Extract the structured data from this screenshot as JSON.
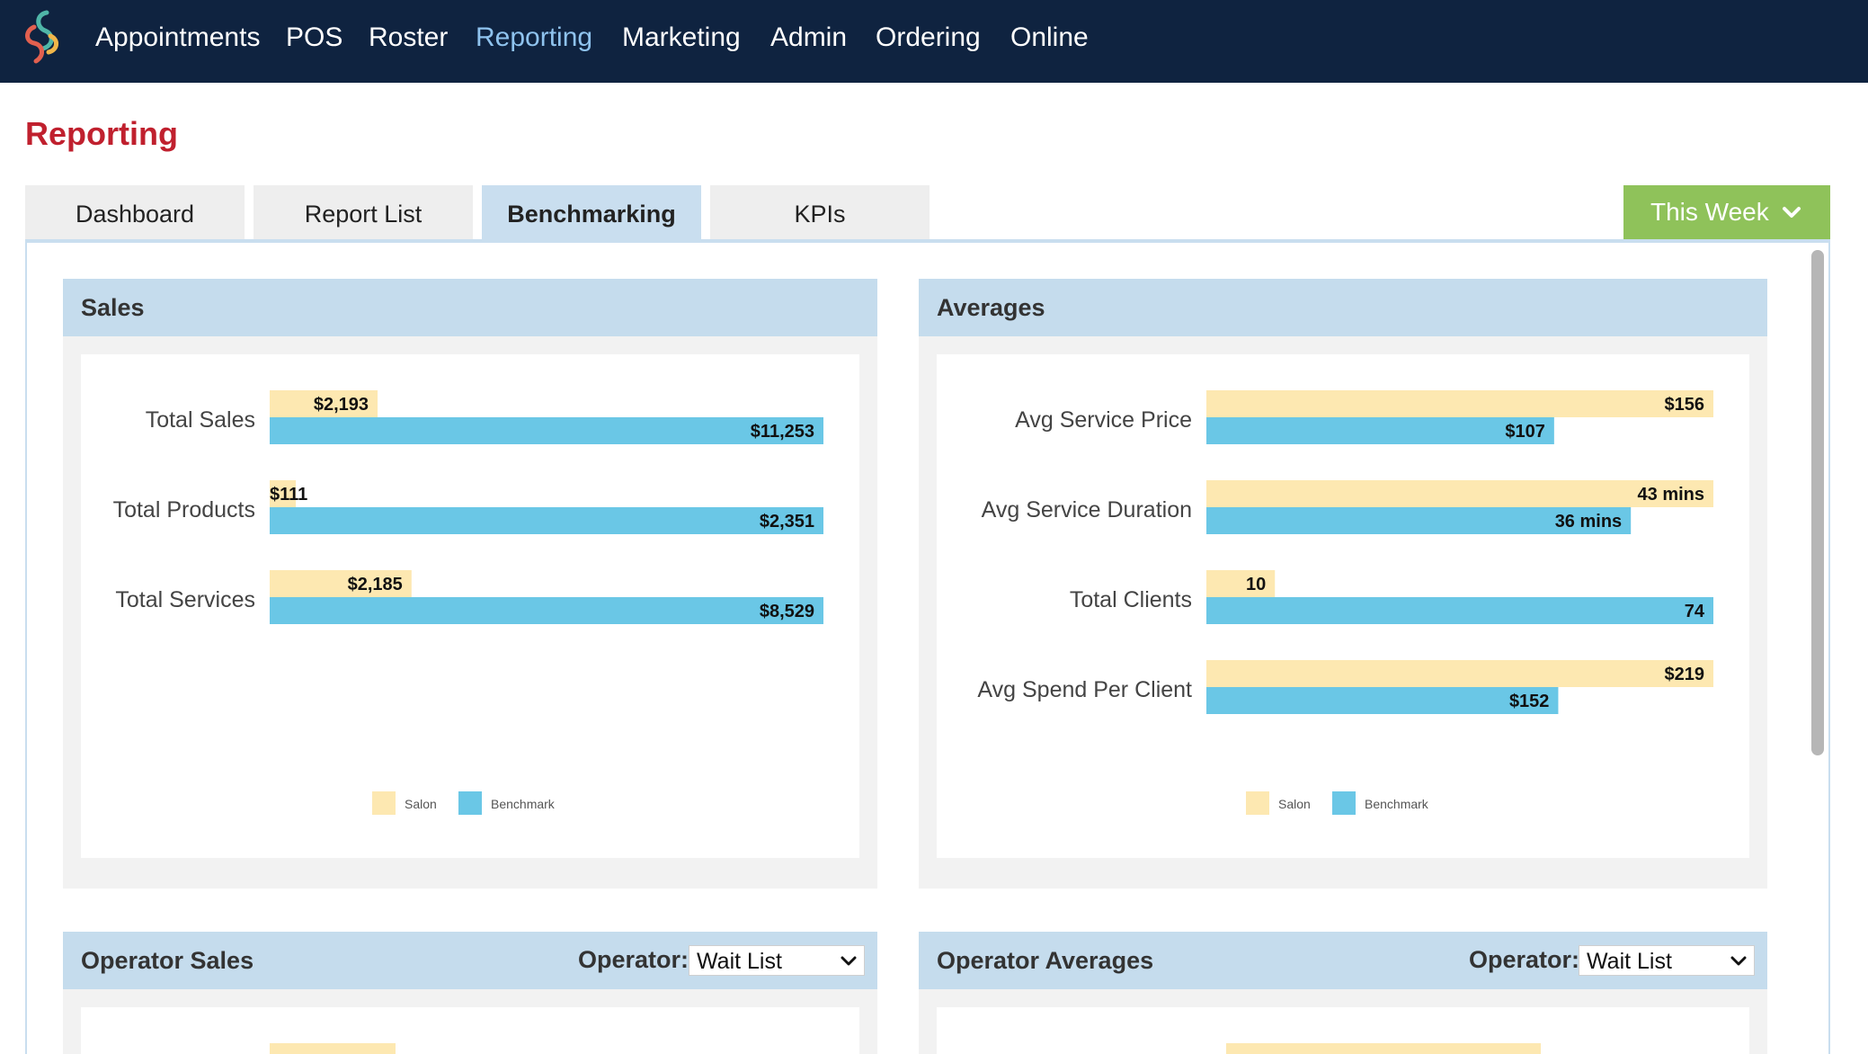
{
  "nav": {
    "items": [
      {
        "label": "Appointments",
        "active": false
      },
      {
        "label": "POS",
        "active": false
      },
      {
        "label": "Roster",
        "active": false
      },
      {
        "label": "Reporting",
        "active": true
      },
      {
        "label": "Marketing",
        "active": false
      },
      {
        "label": "Admin",
        "active": false
      },
      {
        "label": "Ordering",
        "active": false
      },
      {
        "label": "Online",
        "active": false
      }
    ]
  },
  "page": {
    "title": "Reporting"
  },
  "tabs": [
    {
      "label": "Dashboard",
      "active": false
    },
    {
      "label": "Report List",
      "active": false
    },
    {
      "label": "Benchmarking",
      "active": true
    },
    {
      "label": "KPIs",
      "active": false
    }
  ],
  "period": {
    "label": "This Week"
  },
  "colors": {
    "salon": "#fde8b1",
    "benchmark": "#6ac7e6",
    "accent_red": "#c0202e",
    "nav_bg": "#0f2340",
    "button_green": "#8fc25a"
  },
  "panels": {
    "sales": {
      "title": "Sales",
      "legend": [
        "Salon",
        "Benchmark"
      ]
    },
    "averages": {
      "title": "Averages",
      "legend": [
        "Salon",
        "Benchmark"
      ]
    },
    "operator_sales": {
      "title": "Operator Sales",
      "operator_label": "Operator:",
      "operator_value": "Wait List"
    },
    "operator_averages": {
      "title": "Operator Averages",
      "operator_label": "Operator:",
      "operator_value": "Wait List"
    }
  },
  "chart_data": [
    {
      "type": "bar",
      "orientation": "horizontal",
      "title": "Sales",
      "categories": [
        "Total Sales",
        "Total Products",
        "Total Services"
      ],
      "series": [
        {
          "name": "Salon",
          "values": [
            2193,
            111,
            2185
          ],
          "labels": [
            "$2,193",
            "$111",
            "$2,185"
          ]
        },
        {
          "name": "Benchmark",
          "values": [
            11253,
            2351,
            8529
          ],
          "labels": [
            "$11,253",
            "$2,351",
            "$8,529"
          ]
        }
      ],
      "scale": "each category scaled to its largest value",
      "legend": "bottom-center",
      "grid": false
    },
    {
      "type": "bar",
      "orientation": "horizontal",
      "title": "Averages",
      "categories": [
        "Avg Service Price",
        "Avg Service Duration",
        "Total Clients",
        "Avg Spend Per Client"
      ],
      "series": [
        {
          "name": "Salon",
          "values": [
            156,
            43,
            10,
            219
          ],
          "labels": [
            "$156",
            "43 mins",
            "10",
            "$219"
          ]
        },
        {
          "name": "Benchmark",
          "values": [
            107,
            36,
            74,
            152
          ],
          "labels": [
            "$107",
            "36 mins",
            "74",
            "$152"
          ]
        }
      ],
      "scale": "each category scaled to its largest value",
      "legend": "bottom-center",
      "grid": false
    }
  ]
}
